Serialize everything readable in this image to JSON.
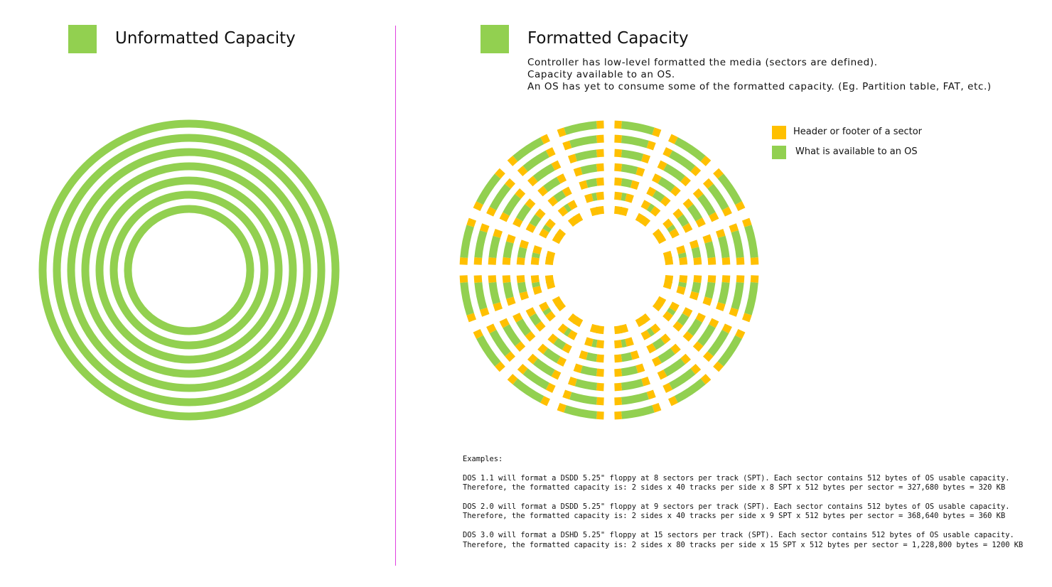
{
  "colors": {
    "available": "#92d050",
    "header_footer": "#ffc000",
    "divider": "#e040e0"
  },
  "left_panel": {
    "title": "Unformatted Capacity",
    "track_count": 7
  },
  "right_panel": {
    "title": "Formatted Capacity",
    "description": [
      "Controller has low-level formatted the media (sectors are defined).",
      "Capacity available to an OS.",
      "An OS has yet to consume some of the formatted capacity. (Eg. Partition table, FAT, etc.)"
    ],
    "track_count": 7,
    "sector_count": 16,
    "legend": [
      {
        "label": "Header or footer of a sector",
        "color": "#ffc000"
      },
      {
        "label": "What is available to an OS",
        "color": "#92d050"
      }
    ],
    "examples_heading": "Examples:",
    "examples": [
      [
        "DOS 1.1 will format a DSDD 5.25\" floppy at 8 sectors per track (SPT). Each sector contains 512 bytes of OS usable capacity.",
        "Therefore, the formatted capacity is: 2 sides x 40 tracks per side x 8 SPT x 512 bytes per sector = 327,680 bytes = 320 KB"
      ],
      [
        "DOS 2.0 will format a DSDD 5.25\" floppy at 9 sectors per track (SPT). Each sector contains 512 bytes of OS usable capacity.",
        "Therefore, the formatted capacity is: 2 sides x 40 tracks per side x 9 SPT x 512 bytes per sector = 368,640 bytes = 360 KB"
      ],
      [
        "DOS 3.0 will format a DSHD 5.25\" floppy at 15 sectors per track (SPT). Each sector contains 512 bytes of OS usable capacity.",
        "Therefore, the formatted capacity is: 2 sides x 80 tracks per side x 15 SPT x 512 bytes per sector = 1,228,800 bytes = 1200 KB"
      ]
    ]
  }
}
